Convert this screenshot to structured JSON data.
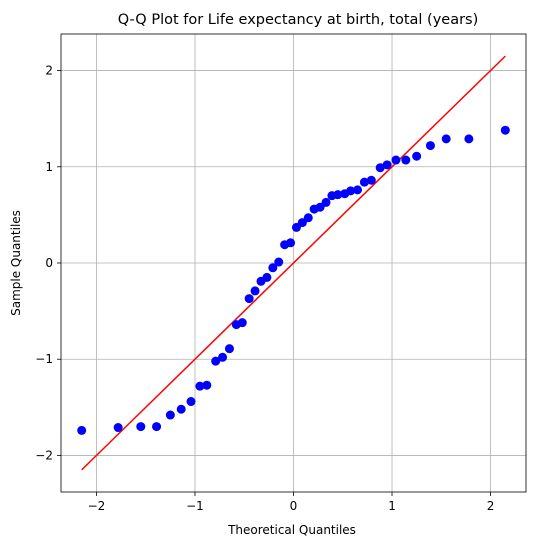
{
  "chart_data": {
    "type": "scatter",
    "title": "Q-Q Plot for Life expectancy at birth, total (years)",
    "xlabel": "Theoretical Quantiles",
    "ylabel": "Sample Quantiles",
    "xlim": [
      -2.36,
      2.36
    ],
    "ylim": [
      -2.38,
      2.38
    ],
    "xticks": [
      -2,
      -1,
      0,
      1,
      2
    ],
    "yticks": [
      -2,
      -1,
      0,
      1,
      2
    ],
    "grid": true,
    "point_color": "#0000ff",
    "line_color": "#ff0000",
    "reference_line": {
      "x": [
        -2.15,
        2.15
      ],
      "y": [
        -2.15,
        2.15
      ]
    },
    "points": [
      {
        "x": -2.15,
        "y": -1.74
      },
      {
        "x": -1.78,
        "y": -1.71
      },
      {
        "x": -1.55,
        "y": -1.7
      },
      {
        "x": -1.39,
        "y": -1.7
      },
      {
        "x": -1.25,
        "y": -1.58
      },
      {
        "x": -1.14,
        "y": -1.52
      },
      {
        "x": -1.04,
        "y": -1.44
      },
      {
        "x": -0.95,
        "y": -1.28
      },
      {
        "x": -0.88,
        "y": -1.27
      },
      {
        "x": -0.79,
        "y": -1.02
      },
      {
        "x": -0.72,
        "y": -0.98
      },
      {
        "x": -0.65,
        "y": -0.89
      },
      {
        "x": -0.58,
        "y": -0.64
      },
      {
        "x": -0.52,
        "y": -0.62
      },
      {
        "x": -0.45,
        "y": -0.37
      },
      {
        "x": -0.39,
        "y": -0.29
      },
      {
        "x": -0.33,
        "y": -0.19
      },
      {
        "x": -0.27,
        "y": -0.15
      },
      {
        "x": -0.21,
        "y": -0.05
      },
      {
        "x": -0.15,
        "y": 0.01
      },
      {
        "x": -0.09,
        "y": 0.19
      },
      {
        "x": -0.03,
        "y": 0.21
      },
      {
        "x": 0.03,
        "y": 0.37
      },
      {
        "x": 0.09,
        "y": 0.42
      },
      {
        "x": 0.15,
        "y": 0.47
      },
      {
        "x": 0.21,
        "y": 0.56
      },
      {
        "x": 0.27,
        "y": 0.58
      },
      {
        "x": 0.33,
        "y": 0.63
      },
      {
        "x": 0.39,
        "y": 0.7
      },
      {
        "x": 0.45,
        "y": 0.71
      },
      {
        "x": 0.52,
        "y": 0.72
      },
      {
        "x": 0.58,
        "y": 0.75
      },
      {
        "x": 0.65,
        "y": 0.76
      },
      {
        "x": 0.72,
        "y": 0.84
      },
      {
        "x": 0.79,
        "y": 0.86
      },
      {
        "x": 0.88,
        "y": 0.99
      },
      {
        "x": 0.95,
        "y": 1.02
      },
      {
        "x": 1.04,
        "y": 1.07
      },
      {
        "x": 1.14,
        "y": 1.07
      },
      {
        "x": 1.25,
        "y": 1.11
      },
      {
        "x": 1.39,
        "y": 1.22
      },
      {
        "x": 1.55,
        "y": 1.29
      },
      {
        "x": 1.78,
        "y": 1.29
      },
      {
        "x": 2.15,
        "y": 1.38
      }
    ]
  }
}
